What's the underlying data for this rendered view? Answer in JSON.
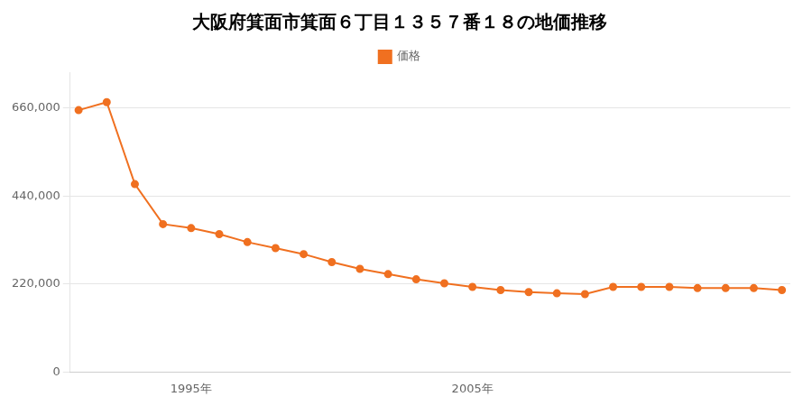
{
  "chart_data": {
    "type": "line",
    "title": "大阪府箕面市箕面６丁目１３５７番１８の地価推移",
    "x": [
      1991,
      1992,
      1993,
      1994,
      1995,
      1996,
      1997,
      1998,
      1999,
      2000,
      2001,
      2002,
      2003,
      2004,
      2005,
      2006,
      2007,
      2008,
      2009,
      2010,
      2011,
      2012,
      2013,
      2014,
      2015,
      2016
    ],
    "series": [
      {
        "name": "価格",
        "color": "#f07020",
        "marker": "circle",
        "line_style": "solid",
        "values": [
          655000,
          675000,
          470000,
          370000,
          360000,
          345000,
          325000,
          310000,
          295000,
          275000,
          258000,
          245000,
          232000,
          222000,
          213000,
          205000,
          200000,
          197000,
          195000,
          213000,
          213000,
          213000,
          210000,
          210000,
          210000,
          205000
        ]
      }
    ],
    "xlim": [
      1990.7,
      2016.3
    ],
    "xticks": [
      {
        "value": 1995,
        "label": "1995年"
      },
      {
        "value": 2005,
        "label": "2005年"
      }
    ],
    "ylim": [
      0,
      750000
    ],
    "yticks": [
      0,
      {
        "value": 220000,
        "label": "220,000"
      },
      {
        "value": 440000,
        "label": "440,000"
      },
      {
        "value": 660000,
        "label": "660,000"
      }
    ],
    "grid": "y",
    "legend": "top"
  }
}
